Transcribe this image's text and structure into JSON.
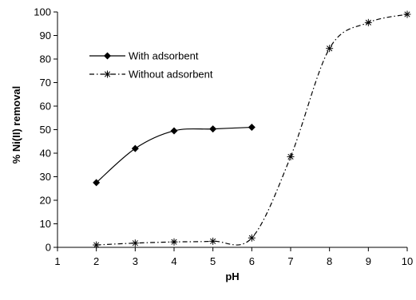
{
  "chart_data": {
    "type": "line",
    "title": "",
    "xlabel": "pH",
    "ylabel": "% Ni(II) removal",
    "xlim": [
      1,
      10
    ],
    "ylim": [
      0,
      100
    ],
    "x_ticks": [
      "1",
      "2",
      "3",
      "4",
      "5",
      "6",
      "7",
      "8",
      "9",
      "10"
    ],
    "y_ticks": [
      "0",
      "10",
      "20",
      "30",
      "40",
      "50",
      "60",
      "70",
      "80",
      "90",
      "100"
    ],
    "grid": false,
    "legend_position": "upper-left",
    "series": [
      {
        "name": "With adsorbent",
        "marker": "diamond",
        "line_style": "solid",
        "x": [
          2,
          3,
          4,
          5,
          6
        ],
        "values": [
          27.5,
          42,
          49.5,
          50.3,
          51
        ]
      },
      {
        "name": "Without adsorbent",
        "marker": "asterisk",
        "line_style": "dash-dot",
        "x": [
          2,
          3,
          4,
          5,
          6,
          7,
          8,
          9,
          10
        ],
        "values": [
          1,
          1.8,
          2.3,
          2.6,
          4,
          38.5,
          84.5,
          95.5,
          99
        ]
      }
    ]
  }
}
